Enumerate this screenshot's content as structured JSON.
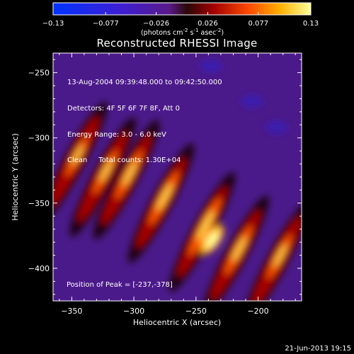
{
  "chart_data": {
    "type": "heatmap",
    "title": "Reconstructed RHESSI Image",
    "xlabel": "Heliocentric X (arcsec)",
    "ylabel": "Heliocentric Y (arcsec)",
    "xlim": [
      -365,
      -165
    ],
    "ylim": [
      -425,
      -235
    ],
    "xticks": [
      -350,
      -300,
      -250,
      -200
    ],
    "yticks": [
      -250,
      -300,
      -350,
      -400
    ],
    "colorbar": {
      "range": [
        -0.13,
        0.13
      ],
      "ticks": [
        "-0.13",
        "-0.077",
        "-0.026",
        "0.026",
        "0.077",
        "0.13"
      ],
      "units_prefix": "(photons cm",
      "units_exp1": "-2",
      "units_mid": " s",
      "units_exp2": "-1",
      "units_mid2": " asec",
      "units_exp3": "-2",
      "units_suffix": ")"
    },
    "info_lines": [
      "13-Aug-2004 09:39:48.000 to 09:42:50.000",
      "Detectors: 4F 5F 6F 7F 8F, Att 0",
      "Energy Range: 3.0 - 6.0 keV",
      "Clean     Total counts: 1.30E+04"
    ],
    "peak_text": "Position of Peak = [-237,-378]",
    "peak_position": [
      -237,
      -378
    ],
    "peak_value": 0.13,
    "ridges": [
      {
        "x": -348,
        "y": -318,
        "amplitude": 0.09
      },
      {
        "x": -325,
        "y": -330,
        "amplitude": 0.1
      },
      {
        "x": -306,
        "y": -332,
        "amplitude": 0.11
      },
      {
        "x": -278,
        "y": -350,
        "amplitude": 0.12
      },
      {
        "x": -245,
        "y": -372,
        "amplitude": 0.13
      },
      {
        "x": -218,
        "y": -390,
        "amplitude": 0.11
      },
      {
        "x": -185,
        "y": -395,
        "amplitude": 0.1
      }
    ],
    "grid": false
  },
  "timestamp": "21-Jun-2013 19:15"
}
